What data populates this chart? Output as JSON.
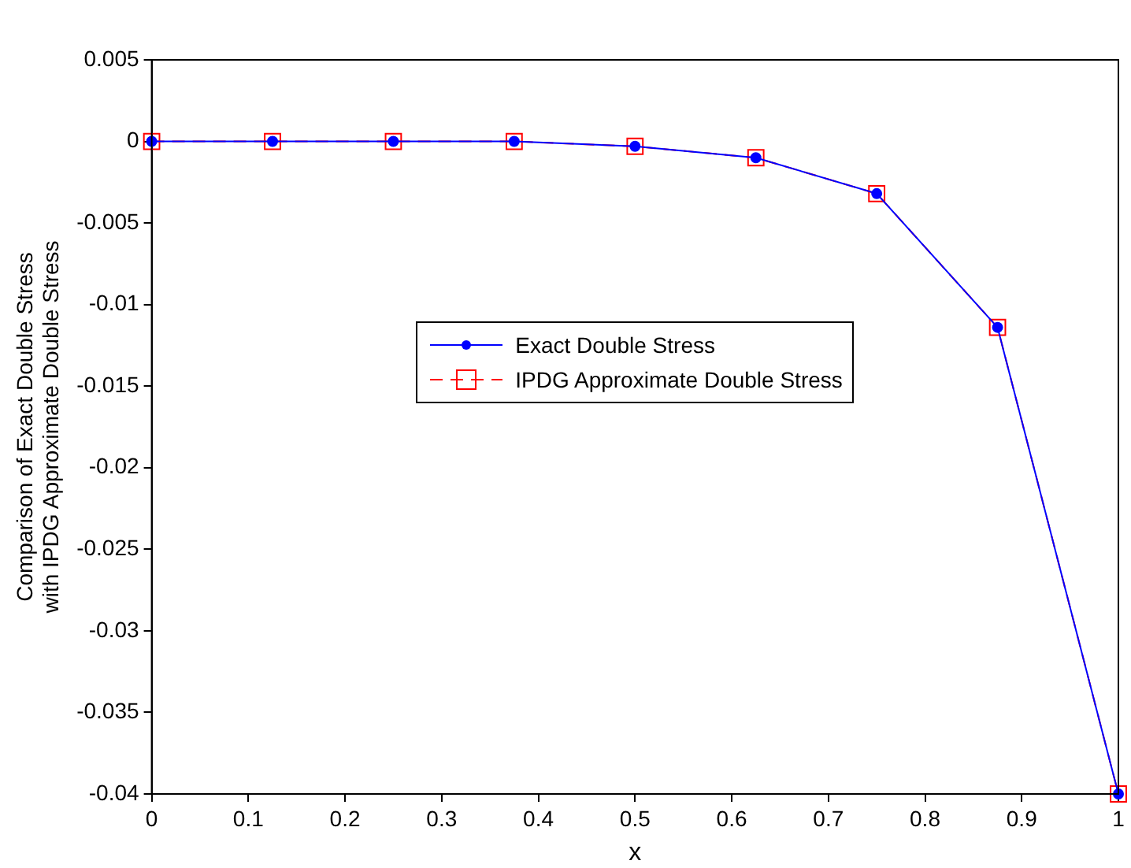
{
  "chart_data": {
    "type": "line",
    "xlabel": "x",
    "ylabel": "Comparison of Exact Double Stress\nwith IPDG Approximate Double Stress",
    "x": [
      0,
      0.125,
      0.25,
      0.375,
      0.5,
      0.625,
      0.75,
      0.875,
      1
    ],
    "series": [
      {
        "name": "Exact Double Stress",
        "color": "#0000ff",
        "values": [
          0,
          0,
          0,
          0,
          -0.0003,
          -0.001,
          -0.0032,
          -0.0114,
          -0.04
        ],
        "marker": "circle",
        "line_style": "solid"
      },
      {
        "name": "IPDG Approximate Double Stress",
        "color": "#ff0000",
        "values": [
          0,
          0,
          0,
          0,
          -0.0003,
          -0.001,
          -0.0032,
          -0.0114,
          -0.04
        ],
        "marker": "square",
        "line_style": "dashed"
      }
    ],
    "xlim": [
      0,
      1
    ],
    "xticks": [
      0,
      0.1,
      0.2,
      0.3,
      0.4,
      0.5,
      0.6,
      0.7,
      0.8,
      0.9,
      1
    ],
    "ylim": [
      -0.04,
      0.005
    ],
    "yticks": [
      -0.04,
      -0.035,
      -0.03,
      -0.025,
      -0.02,
      -0.015,
      -0.01,
      -0.005,
      0,
      0.005
    ],
    "grid": false,
    "legend": "center"
  }
}
